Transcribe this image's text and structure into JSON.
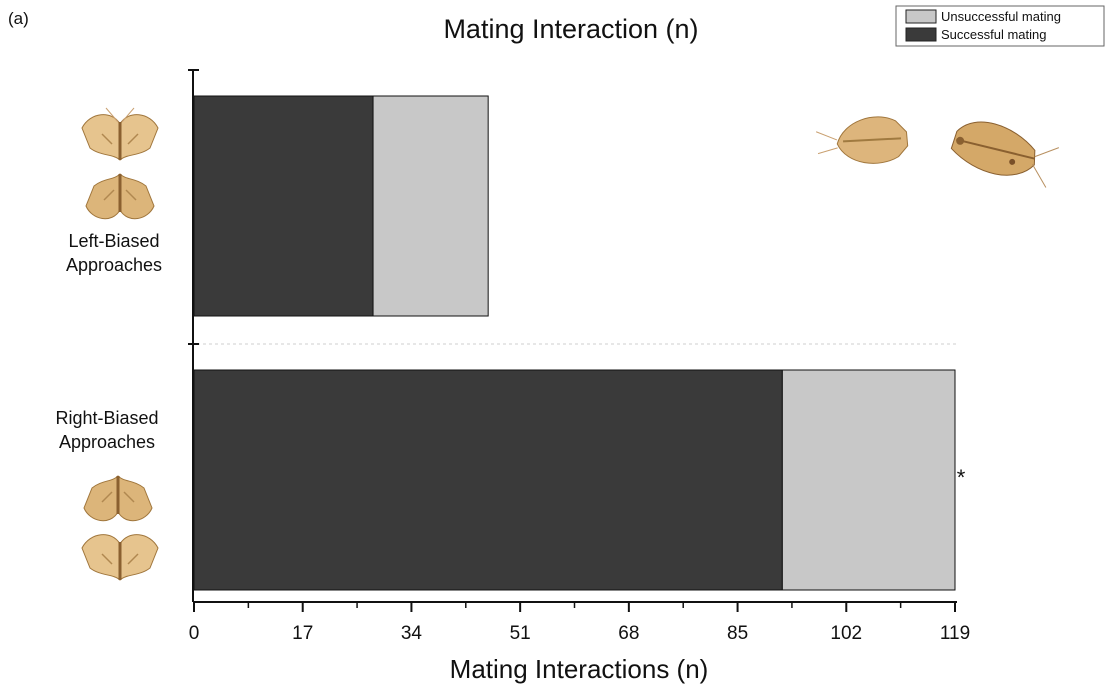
{
  "chart_data": {
    "type": "bar",
    "orientation": "horizontal",
    "stacked": true,
    "panel_label": "(a)",
    "title": "Mating Interaction (n)",
    "xlabel": "Mating Interactions (n)",
    "ylabel": "",
    "xlim": [
      0,
      119
    ],
    "xticks": [
      "0",
      "17",
      "34",
      "51",
      "68",
      "85",
      "102",
      "119"
    ],
    "categories": [
      {
        "line1": "Left-Biased",
        "line2": "Approaches"
      },
      {
        "line1": "Right-Biased",
        "line2": "Approaches"
      }
    ],
    "series": [
      {
        "name": "Successful mating",
        "color": "#3a3a3a",
        "values": [
          28,
          92
        ]
      },
      {
        "name": "Unsuccessful mating",
        "color": "#c8c8c8",
        "values": [
          18,
          27
        ]
      }
    ],
    "legend": {
      "placement": "top-right",
      "entries": [
        "Unsuccessful mating",
        "Successful mating"
      ]
    },
    "annotations": [
      {
        "category": "Right-Biased Approaches",
        "text": "*"
      }
    ],
    "grid": false
  },
  "images": [
    "moth-pair-left-biased",
    "moth-pair-right-biased",
    "mating-moths"
  ]
}
